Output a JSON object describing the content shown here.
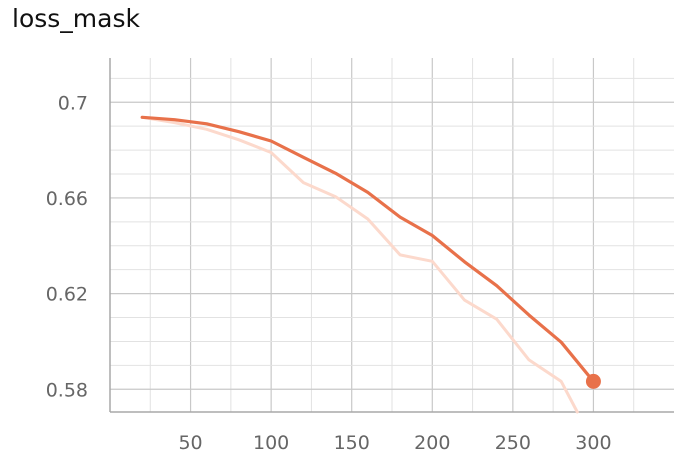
{
  "chart_data": {
    "type": "line",
    "title": "loss_mask",
    "xlabel": "",
    "ylabel": "",
    "xlim": [
      0,
      350
    ],
    "ylim": [
      0.5705,
      0.7185
    ],
    "x_ticks": [
      50,
      100,
      150,
      200,
      250,
      300
    ],
    "y_ticks": [
      0.58,
      0.62,
      0.66,
      0.7
    ],
    "grid": true,
    "legend": "none",
    "series": [
      {
        "role": "raw",
        "color": "#fcd9cc",
        "x": [
          20,
          40,
          60,
          80,
          100,
          120,
          140,
          160,
          180,
          200,
          220,
          240,
          260,
          280,
          290
        ],
        "y": [
          0.6937,
          0.6915,
          0.6887,
          0.6843,
          0.679,
          0.6664,
          0.6605,
          0.6512,
          0.6362,
          0.6335,
          0.6173,
          0.6093,
          0.5923,
          0.5833,
          0.5705
        ]
      },
      {
        "role": "smoothed",
        "color": "#e8714a",
        "x": [
          20,
          40,
          60,
          80,
          100,
          120,
          140,
          160,
          180,
          200,
          220,
          240,
          260,
          280,
          300
        ],
        "y": [
          0.6937,
          0.6927,
          0.691,
          0.6877,
          0.6838,
          0.677,
          0.6703,
          0.6623,
          0.652,
          0.6443,
          0.6333,
          0.6233,
          0.611,
          0.5997,
          0.5833
        ]
      }
    ]
  }
}
